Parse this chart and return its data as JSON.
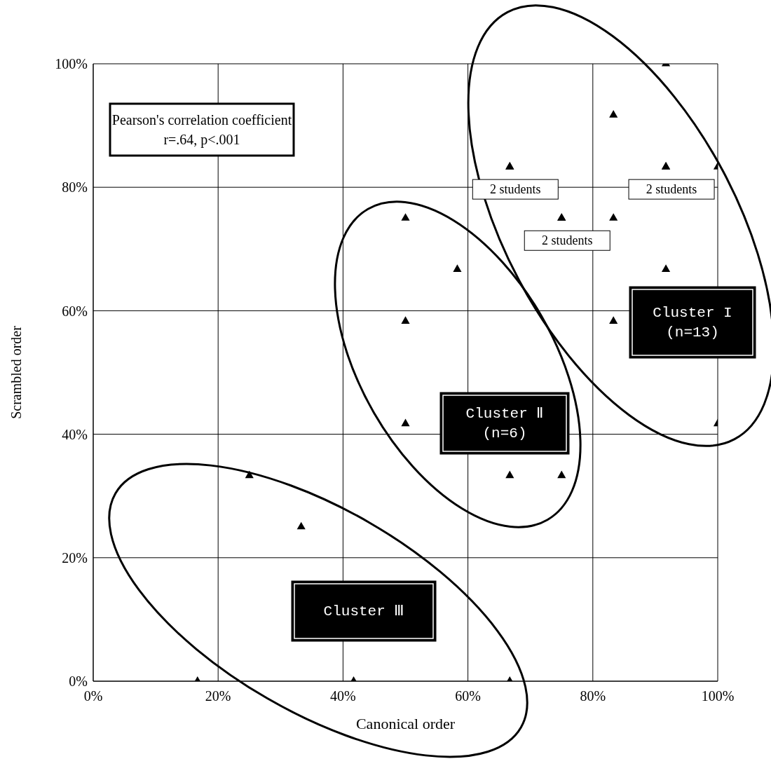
{
  "chart_data": {
    "type": "scatter",
    "xlabel": "Canonical order",
    "ylabel": "Scrambled order",
    "xlim": [
      0,
      100
    ],
    "ylim": [
      0,
      100
    ],
    "xticks": [
      {
        "value": 0,
        "label": "0%"
      },
      {
        "value": 20,
        "label": "20%"
      },
      {
        "value": 40,
        "label": "40%"
      },
      {
        "value": 60,
        "label": "60%"
      },
      {
        "value": 80,
        "label": "80%"
      },
      {
        "value": 100,
        "label": "100%"
      }
    ],
    "yticks": [
      {
        "value": 0,
        "label": "0%"
      },
      {
        "value": 20,
        "label": "20%"
      },
      {
        "value": 40,
        "label": "40%"
      },
      {
        "value": 60,
        "label": "60%"
      },
      {
        "value": 80,
        "label": "80%"
      },
      {
        "value": 100,
        "label": "100%"
      }
    ],
    "grid": true,
    "marker": "triangle",
    "series": [
      {
        "color": "#000000",
        "x": [
          16.7,
          25,
          33.3,
          41.7,
          66.7,
          50,
          58.3,
          50,
          50,
          66.7,
          75,
          66.7,
          66.7,
          75,
          75,
          83.3,
          83.3,
          83.3,
          91.7,
          91.7,
          91.7,
          91.7,
          100,
          100
        ],
        "values": [
          0,
          33.3,
          25,
          0,
          0,
          75,
          66.7,
          58.3,
          41.7,
          33.3,
          33.3,
          83.3,
          83.3,
          75,
          75,
          91.7,
          75,
          58.3,
          100,
          83.3,
          83.3,
          66.7,
          83.3,
          41.7
        ]
      }
    ],
    "annotations": [
      "Pearson's correlation coefficient",
      "r=.64, p<.001",
      "Cluster I\n(n=13)",
      "Cluster Ⅱ\n(n=6)",
      "Cluster Ⅲ",
      {
        "text": "2 students",
        "x": 66.7,
        "y": 83.3
      },
      {
        "text": "2 students",
        "x": 91.7,
        "y": 83.3
      },
      {
        "text": "2 students",
        "x": 75,
        "y": 75
      }
    ]
  }
}
